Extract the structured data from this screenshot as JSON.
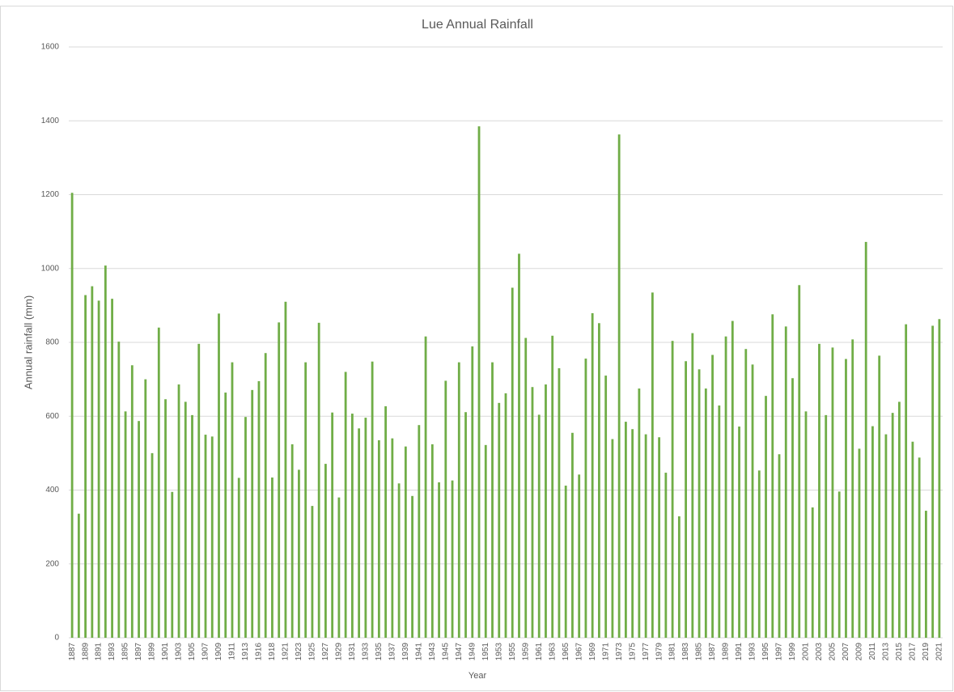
{
  "chart_data": {
    "type": "bar",
    "title": "Lue Annual Rainfall",
    "x_label": "Year",
    "y_label": "Annual rainfall (mm)",
    "categories": [
      "1887",
      null,
      "1889",
      null,
      "1891",
      null,
      "1893",
      null,
      "1895",
      null,
      "1897",
      null,
      "1899",
      null,
      "1901",
      null,
      "1903",
      null,
      "1905",
      null,
      "1907",
      null,
      "1909",
      null,
      "1911",
      null,
      "1913",
      null,
      "1916",
      null,
      "1918",
      null,
      "1921",
      null,
      "1923",
      null,
      "1925",
      null,
      "1927",
      null,
      "1929",
      null,
      "1931",
      null,
      "1933",
      null,
      "1935",
      null,
      "1937",
      null,
      "1939",
      null,
      "1941",
      null,
      "1943",
      null,
      "1945",
      null,
      "1947",
      null,
      "1949",
      null,
      "1951",
      null,
      "1953",
      null,
      "1955",
      null,
      "1959",
      null,
      "1961",
      null,
      "1963",
      null,
      "1965",
      null,
      "1967",
      null,
      "1969",
      null,
      "1971",
      null,
      "1973",
      null,
      "1975",
      null,
      "1977",
      null,
      "1979",
      null,
      "1981",
      null,
      "1983",
      null,
      "1985",
      null,
      "1987",
      null,
      "1989",
      null,
      "1991",
      null,
      "1993",
      null,
      "1995",
      null,
      "1997",
      null,
      "1999",
      null,
      "2001",
      null,
      "2003",
      null,
      "2005",
      null,
      "2007",
      null,
      "2009",
      null,
      "2011",
      null,
      "2013",
      null,
      "2015",
      null,
      "2017",
      null,
      "2019",
      null,
      "2021"
    ],
    "values": [
      1205,
      336,
      928,
      952,
      913,
      1008,
      918,
      802,
      613,
      738,
      587,
      700,
      500,
      840,
      646,
      395,
      686,
      639,
      603,
      796,
      550,
      545,
      878,
      664,
      746,
      433,
      598,
      671,
      695,
      771,
      434,
      854,
      910,
      524,
      455,
      746,
      357,
      853,
      471,
      610,
      380,
      720,
      607,
      567,
      596,
      748,
      535,
      627,
      540,
      418,
      518,
      384,
      576,
      816,
      524,
      421,
      696,
      426,
      746,
      611,
      789,
      1385,
      522,
      746,
      636,
      662,
      948,
      1040,
      812,
      679,
      604,
      686,
      818,
      730,
      412,
      555,
      442,
      756,
      879,
      852,
      710,
      538,
      1363,
      585,
      565,
      675,
      551,
      935,
      543,
      447,
      804,
      329,
      749,
      825,
      727,
      675,
      766,
      629,
      816,
      858,
      572,
      782,
      740,
      453,
      655,
      876,
      497,
      843,
      703,
      955,
      613,
      353,
      796,
      603,
      786,
      396,
      755,
      808,
      512,
      1072,
      573,
      764,
      551,
      609,
      639,
      849,
      531,
      488,
      344,
      845,
      863
    ],
    "color": "#70ad47",
    "ylim": [
      0,
      1600
    ],
    "yticks": [
      0,
      200,
      400,
      600,
      800,
      1000,
      1200,
      1400,
      1600
    ],
    "grid": true
  }
}
